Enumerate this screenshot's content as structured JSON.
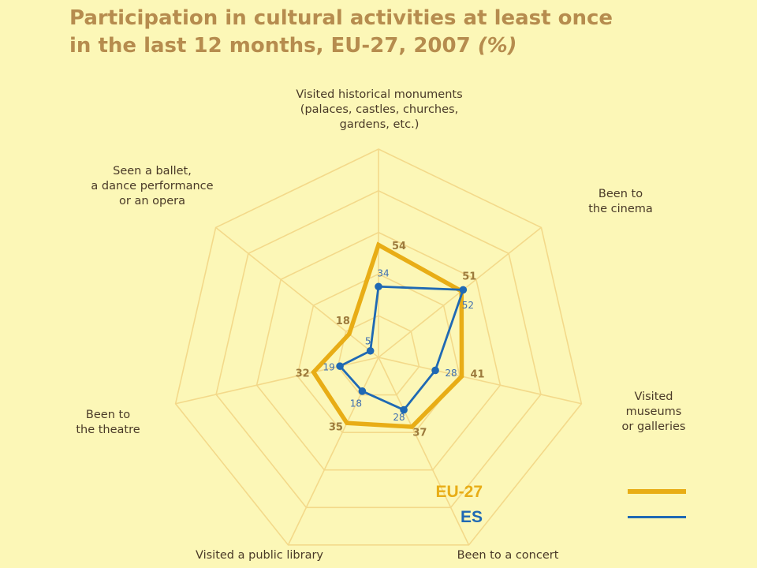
{
  "title": {
    "line1": "Participation in cultural activities at least once",
    "line2": "in the last 12 months, EU-27, 2007 ",
    "unit": "(%)"
  },
  "colors": {
    "background": "#fcf7b7",
    "grid": "#f3d98a",
    "eu27": "#e8ad16",
    "es": "#1f69b4"
  },
  "chart_data": {
    "type": "radar",
    "title": "Participation in cultural activities at least once in the last 12 months, EU-27, 2007 (%)",
    "unit": "%",
    "rlim": [
      0,
      100
    ],
    "grid": true,
    "legend_placement": "bottom-right",
    "axes": [
      "Visited historical monuments (palaces, castles, churches, gardens, etc.)",
      "Been to the cinema",
      "Visited museums or galleries",
      "Been to a concert",
      "Visited a public library",
      "Been to the theatre",
      "Seen a ballet, a dance performance or an opera"
    ],
    "axis_label_lines": [
      [
        "Visited historical monuments",
        "(palaces, castles, churches,",
        "gardens, etc.)"
      ],
      [
        "Been to",
        "the cinema"
      ],
      [
        "Visited",
        "museums",
        "or galleries"
      ],
      [
        "Been to a concert"
      ],
      [
        "Visited a public library"
      ],
      [
        "Been to",
        "the theatre"
      ],
      [
        "Seen a ballet,",
        "a dance performance",
        "or an opera"
      ]
    ],
    "series": [
      {
        "name": "EU-27",
        "values": [
          54,
          51,
          41,
          37,
          35,
          32,
          18
        ]
      },
      {
        "name": "ES",
        "values": [
          34,
          52,
          28,
          28,
          18,
          19,
          5
        ]
      }
    ]
  },
  "legend": [
    {
      "label": "EU-27"
    },
    {
      "label": "ES"
    }
  ]
}
